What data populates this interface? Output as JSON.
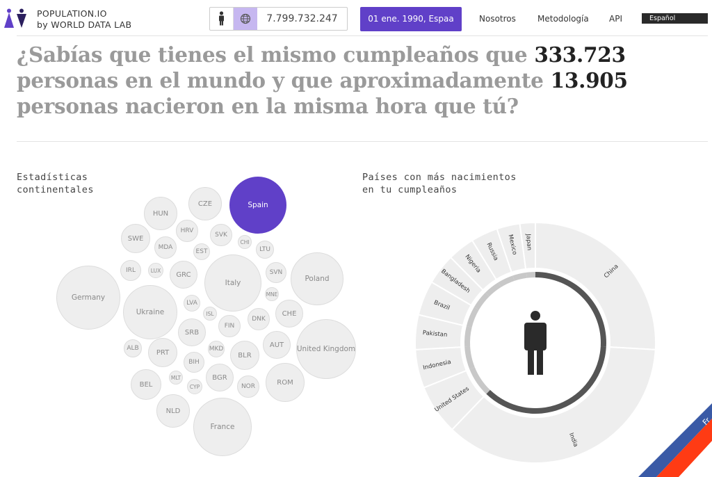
{
  "header": {
    "logo_icon": "population-io-logo-icon",
    "brand_line1": "POPULATION.IO",
    "brand_line2": "by WORLD DATA LAB",
    "counter": {
      "person_icon": "person-icon",
      "globe_icon": "globe-icon",
      "value": "7.799.732.247"
    },
    "date_button": "01 ene. 1990, Espaa",
    "nav": {
      "about": "Nosotros",
      "methodology": "Metodología",
      "api": "API"
    },
    "language": "Español"
  },
  "headline": {
    "part1": "¿Sabías que tienes el mismo cumpleaños que ",
    "num1": "333.723",
    "part2": " personas en el mundo y que aproximadamente ",
    "num2": "13.905",
    "part3": " personas nacieron en la misma hora que tú?"
  },
  "continental": {
    "title_line1": "Estadísticas",
    "title_line2": "continentales",
    "bubbles": [
      "HUN",
      "CZE",
      "Spain",
      "HRV",
      "SVK",
      "SWE",
      "MDA",
      "EST",
      "CHI",
      "LTU",
      "IRL",
      "LUX",
      "GRC",
      "Italy",
      "SVN",
      "Poland",
      "Germany",
      "MNE",
      "Ukraine",
      "LVA",
      "ISL",
      "CHE",
      "DNK",
      "FIN",
      "SRB",
      "AUT",
      "United Kingdom",
      "ALB",
      "PRT",
      "MKD",
      "BLR",
      "BIH",
      "MLT",
      "BGR",
      "ROM",
      "BEL",
      "CYP",
      "NOR",
      "NLD",
      "France"
    ],
    "selected": "Spain",
    "selected_color": "#6040c8"
  },
  "countries_chart": {
    "title_line1": "Países con más nacimientos",
    "title_line2": "en tu cumpleaños",
    "center_icon": "person-icon",
    "chart_data": {
      "type": "pie",
      "categories": [
        "China",
        "India",
        "United States",
        "Indonesia",
        "Pakistan",
        "Brazil",
        "Bangladesh",
        "Nigeria",
        "Russia",
        "Mexico",
        "Japan"
      ],
      "values": [
        25.0,
        35.0,
        6.5,
        5.0,
        4.5,
        4.5,
        4.0,
        3.5,
        3.5,
        3.0,
        2.0
      ],
      "colors": {
        "slice": "#eeeeee",
        "separator": "#ffffff",
        "ring_dark": "#555555",
        "ring_light": "#c8c8c8",
        "label": "#333333"
      }
    }
  },
  "ribbon": {
    "text": "Fr",
    "colors": [
      "#3a5aa6",
      "#ff3b14"
    ]
  }
}
